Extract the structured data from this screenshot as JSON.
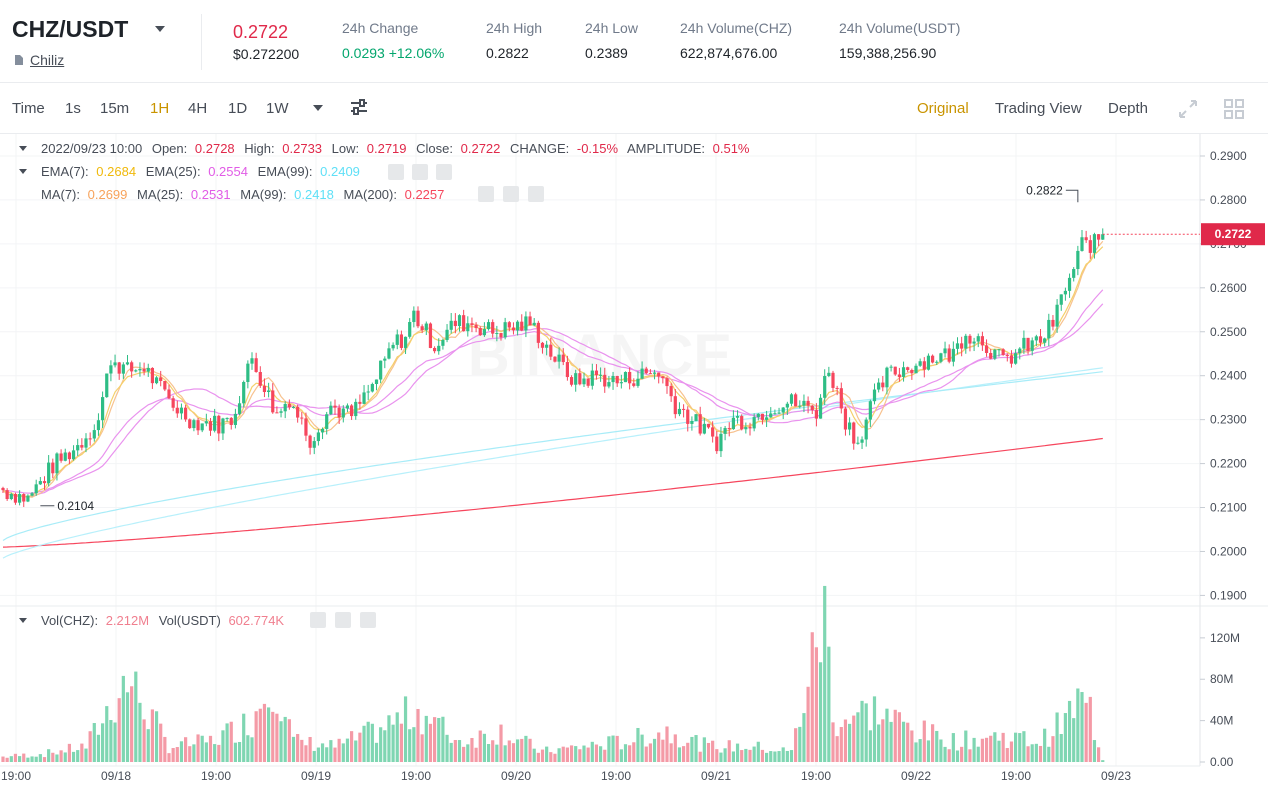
{
  "header": {
    "pair": "CHZ/USDT",
    "coin_name": "Chiliz",
    "last_price": "0.2722",
    "last_price_usd": "$0.272200",
    "stats": [
      {
        "label": "24h Change",
        "value": "0.0293 +12.06%",
        "color": "green"
      },
      {
        "label": "24h High",
        "value": "0.2822"
      },
      {
        "label": "24h Low",
        "value": "0.2389"
      },
      {
        "label": "24h Volume(CHZ)",
        "value": "622,874,676.00"
      },
      {
        "label": "24h Volume(USDT)",
        "value": "159,388,256.90"
      }
    ]
  },
  "toolbar": {
    "intervals": [
      "Time",
      "1s",
      "15m",
      "1H",
      "4H",
      "1D",
      "1W"
    ],
    "active_interval": "1H",
    "views": [
      "Original",
      "Trading View",
      "Depth"
    ],
    "active_view": "Original"
  },
  "colors": {
    "up": "#2ebd85",
    "down": "#f6465d",
    "accent": "#c99400",
    "ema7": "#f0b90b",
    "ema25": "#e15ce6",
    "ema99": "#5fe0f7",
    "ma7": "#f7a35c",
    "ma25": "#e15ce6",
    "ma99": "#5fe0f7",
    "ma200": "#f6465d"
  },
  "legend": {
    "ohlc": {
      "datetime": "2022/09/23 10:00",
      "open_label": "Open:",
      "open": "0.2728",
      "high_label": "High:",
      "high": "0.2733",
      "low_label": "Low:",
      "low": "0.2719",
      "close_label": "Close:",
      "close": "0.2722",
      "change_label": "CHANGE:",
      "change": "-0.15%",
      "amplitude_label": "AMPLITUDE:",
      "amplitude": "0.51%"
    },
    "ema": [
      {
        "label": "EMA(7):",
        "value": "0.2684"
      },
      {
        "label": "EMA(25):",
        "value": "0.2554"
      },
      {
        "label": "EMA(99):",
        "value": "0.2409"
      }
    ],
    "ma": [
      {
        "label": "MA(7):",
        "value": "0.2699"
      },
      {
        "label": "MA(25):",
        "value": "0.2531"
      },
      {
        "label": "MA(99):",
        "value": "0.2418"
      },
      {
        "label": "MA(200):",
        "value": "0.2257"
      }
    ],
    "vol": [
      {
        "label": "Vol(CHZ):",
        "value": "2.212M"
      },
      {
        "label": "Vol(USDT)",
        "value": "602.774K"
      }
    ]
  },
  "chart_data": {
    "type": "candlestick",
    "interval": "1H",
    "price_axis": {
      "ticks": [
        "0.2900",
        "0.2800",
        "0.2700",
        "0.2600",
        "0.2500",
        "0.2400",
        "0.2300",
        "0.2200",
        "0.2100",
        "0.2000",
        "0.1900"
      ],
      "range": [
        0.1885,
        0.2925
      ]
    },
    "volume_axis": {
      "ticks": [
        "120M",
        "80M",
        "40M",
        "0.00"
      ],
      "range": [
        0,
        145
      ]
    },
    "time_labels": [
      "19:00",
      "09/18",
      "19:00",
      "09/19",
      "19:00",
      "09/20",
      "19:00",
      "09/21",
      "19:00",
      "09/22",
      "19:00",
      "09/23"
    ],
    "current_price": "0.2722",
    "high_marker": "0.2822",
    "low_marker": "0.2104",
    "watermark": "BINANCE",
    "candles": {
      "start_time": "2022-09-17 15:00",
      "interval_hours": 1,
      "close_waypoints": [
        [
          0,
          0.214
        ],
        [
          6,
          0.212
        ],
        [
          12,
          0.2195
        ],
        [
          18,
          0.224
        ],
        [
          23,
          0.23
        ],
        [
          26,
          0.244
        ],
        [
          30,
          0.241
        ],
        [
          34,
          0.242
        ],
        [
          37,
          0.238
        ],
        [
          41,
          0.2335
        ],
        [
          46,
          0.2295
        ],
        [
          52,
          0.229
        ],
        [
          55,
          0.23
        ],
        [
          60,
          0.244
        ],
        [
          66,
          0.231
        ],
        [
          69,
          0.235
        ],
        [
          74,
          0.2255
        ],
        [
          79,
          0.233
        ],
        [
          84,
          0.231
        ],
        [
          89,
          0.2375
        ],
        [
          94,
          0.247
        ],
        [
          97,
          0.249
        ],
        [
          99,
          0.254
        ],
        [
          104,
          0.247
        ],
        [
          109,
          0.252
        ],
        [
          113,
          0.252
        ],
        [
          118,
          0.25
        ],
        [
          123,
          0.251
        ],
        [
          127,
          0.252
        ],
        [
          133,
          0.244
        ],
        [
          138,
          0.2385
        ],
        [
          143,
          0.24
        ],
        [
          148,
          0.2385
        ],
        [
          153,
          0.24
        ],
        [
          158,
          0.241
        ],
        [
          162,
          0.2335
        ],
        [
          166,
          0.23
        ],
        [
          172,
          0.225
        ],
        [
          176,
          0.23
        ],
        [
          180,
          0.23
        ],
        [
          185,
          0.233
        ],
        [
          190,
          0.234
        ],
        [
          196,
          0.232
        ],
        [
          199,
          0.242
        ],
        [
          203,
          0.23
        ],
        [
          206,
          0.225
        ],
        [
          209,
          0.233
        ],
        [
          213,
          0.24
        ],
        [
          218,
          0.242
        ],
        [
          223,
          0.244
        ],
        [
          229,
          0.245
        ],
        [
          232,
          0.25
        ],
        [
          236,
          0.248
        ],
        [
          241,
          0.243
        ],
        [
          246,
          0.2465
        ],
        [
          250,
          0.248
        ],
        [
          253,
          0.252
        ],
        [
          256,
          0.26
        ],
        [
          258,
          0.264
        ],
        [
          260,
          0.27
        ],
        [
          263,
          0.27
        ],
        [
          265,
          0.2722
        ]
      ],
      "volume_waypoints_millions": [
        [
          0,
          5
        ],
        [
          10,
          8
        ],
        [
          20,
          15
        ],
        [
          30,
          80
        ],
        [
          40,
          15
        ],
        [
          50,
          20
        ],
        [
          60,
          40
        ],
        [
          65,
          88
        ],
        [
          70,
          20
        ],
        [
          80,
          15
        ],
        [
          90,
          30
        ],
        [
          100,
          50
        ],
        [
          110,
          20
        ],
        [
          120,
          30
        ],
        [
          130,
          10
        ],
        [
          140,
          15
        ],
        [
          150,
          20
        ],
        [
          160,
          30
        ],
        [
          170,
          15
        ],
        [
          180,
          15
        ],
        [
          190,
          10
        ],
        [
          198,
          145
        ],
        [
          200,
          40
        ],
        [
          210,
          50
        ],
        [
          220,
          30
        ],
        [
          230,
          20
        ],
        [
          240,
          25
        ],
        [
          250,
          20
        ],
        [
          256,
          40
        ],
        [
          259,
          58
        ],
        [
          262,
          50
        ],
        [
          264,
          15
        ],
        [
          265,
          2
        ]
      ]
    }
  }
}
